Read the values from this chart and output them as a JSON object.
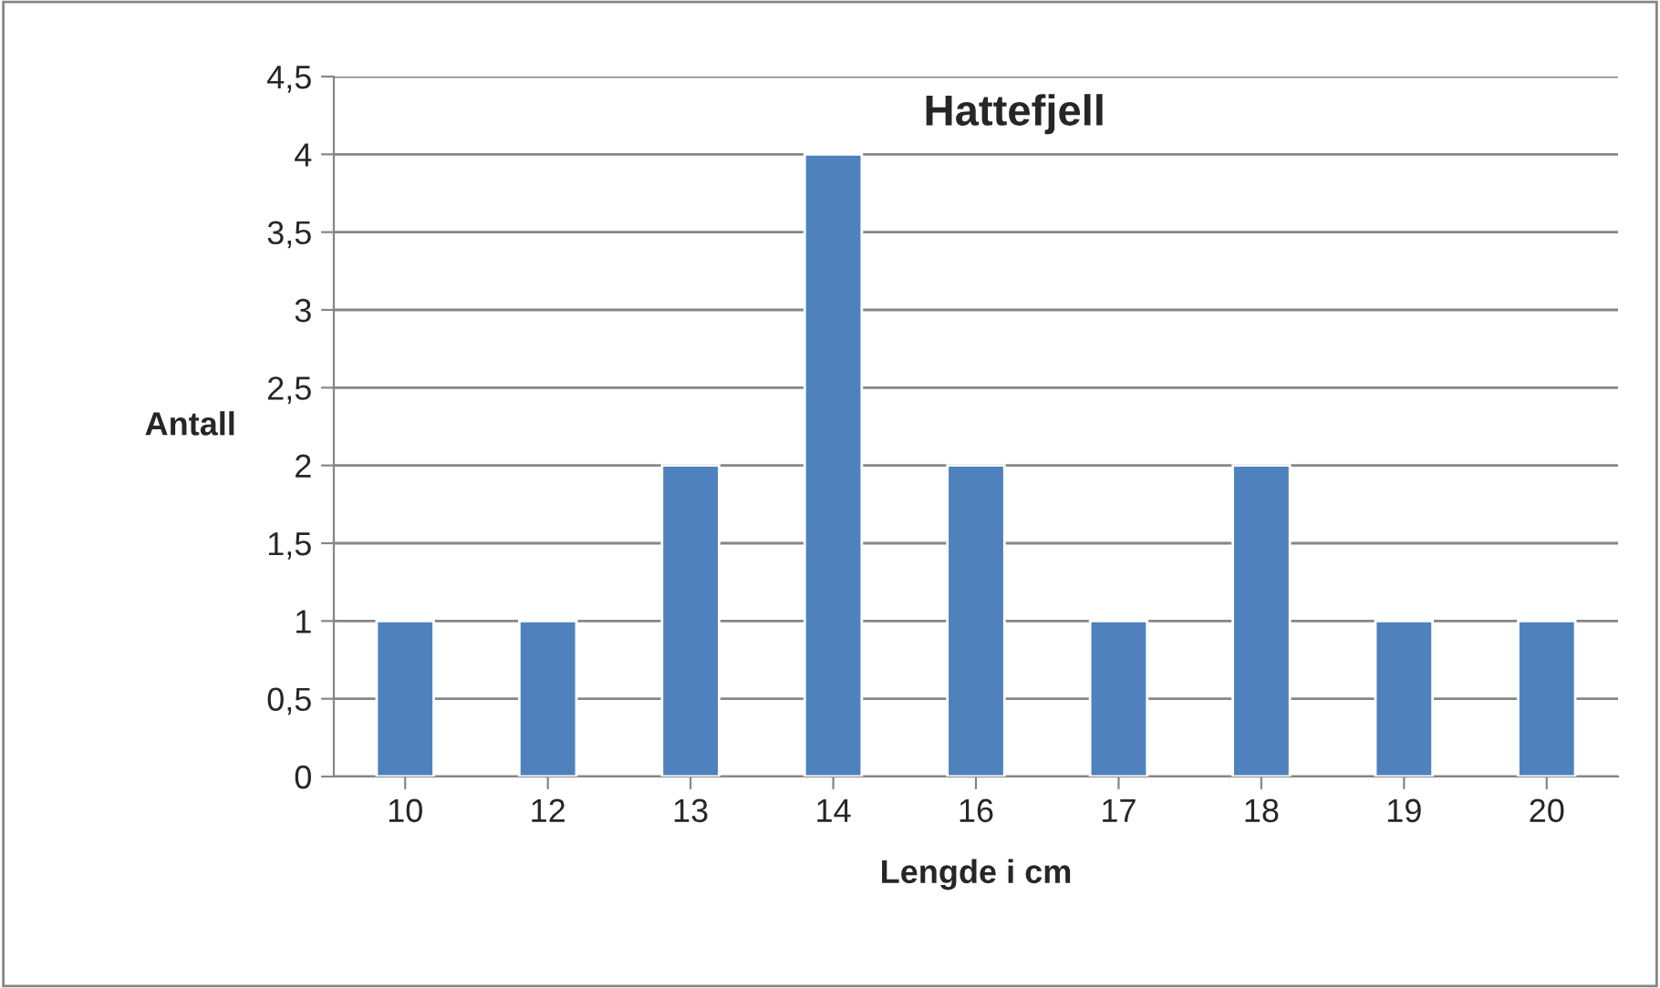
{
  "chart_data": {
    "type": "bar",
    "title": "Hattefjell",
    "xlabel": "Lengde i cm",
    "ylabel": "Antall",
    "categories": [
      "10",
      "12",
      "13",
      "14",
      "16",
      "17",
      "18",
      "19",
      "20"
    ],
    "values": [
      1,
      1,
      2,
      4,
      2,
      1,
      2,
      1,
      1
    ],
    "color": "#4f81bd",
    "ylim": [
      0,
      4.5
    ],
    "yticks": [
      0,
      {
        "value": 0.5,
        "label": "0,5"
      },
      1,
      {
        "value": 1.5,
        "label": "1,5"
      },
      2,
      {
        "value": 2.5,
        "label": "2,5"
      },
      3,
      {
        "value": 3.5,
        "label": "3,5"
      },
      4,
      {
        "value": 4.5,
        "label": "4,5"
      }
    ],
    "grid": "y",
    "legend": false
  }
}
